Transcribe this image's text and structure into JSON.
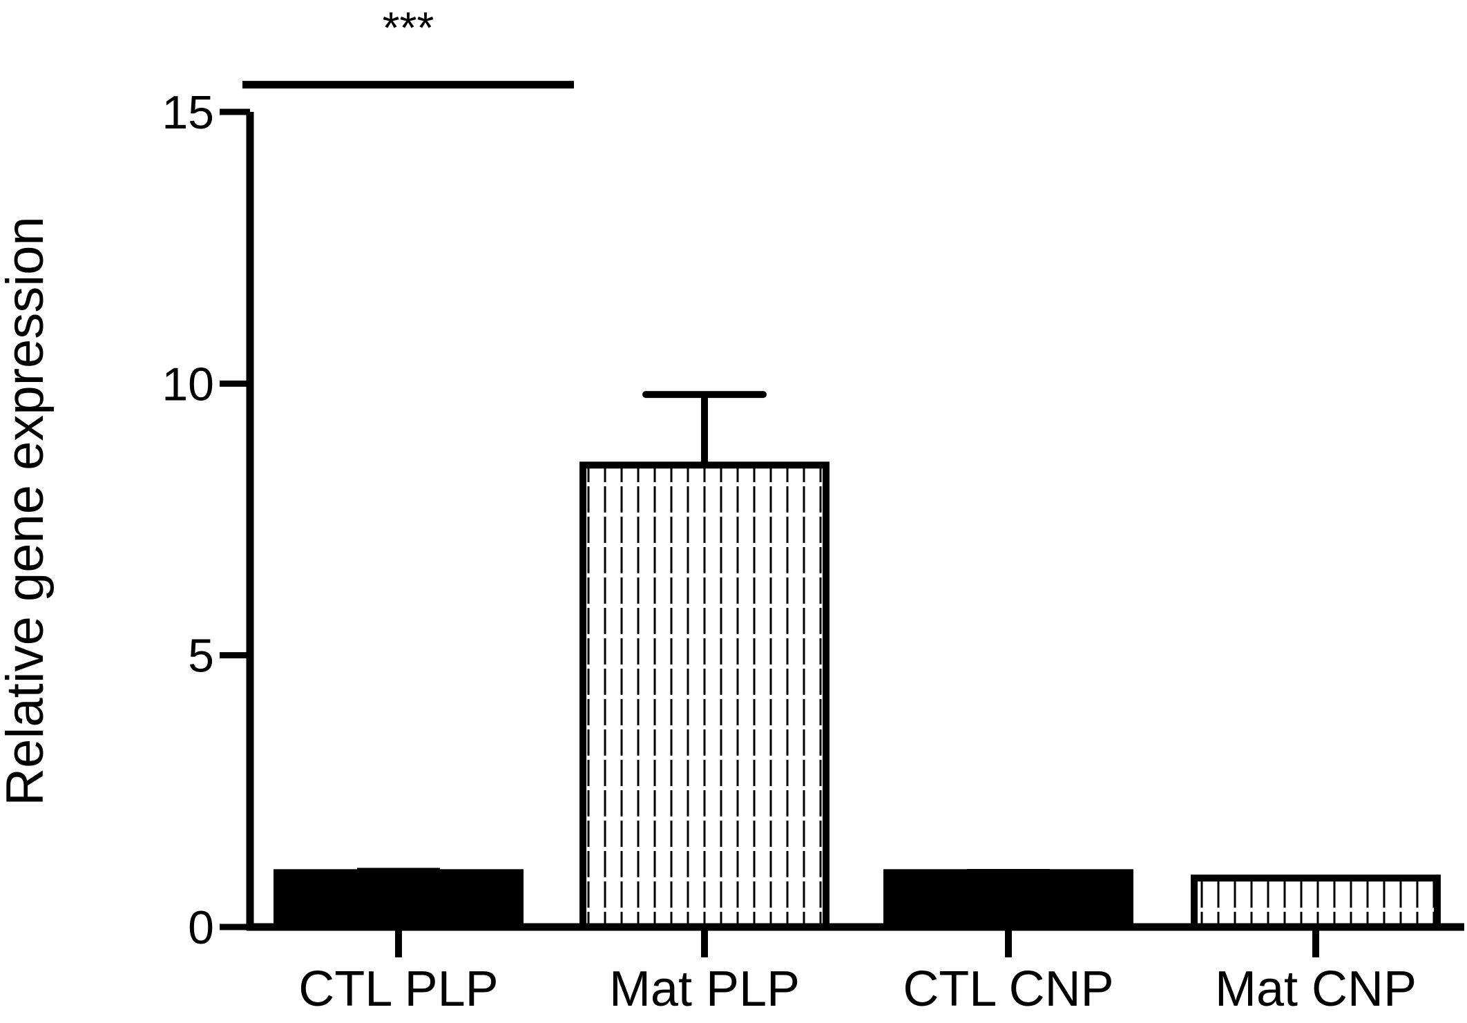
{
  "chart_data": {
    "type": "bar",
    "title": "",
    "xlabel": "",
    "ylabel": "Relative gene expression",
    "ylim": [
      0,
      15
    ],
    "yticks": [
      0,
      5,
      10,
      15
    ],
    "ytick_labels": [
      "0",
      "5",
      "10",
      "15"
    ],
    "grid": false,
    "legend": "none",
    "categories": [
      "CTL PLP",
      "Mat PLP",
      "CTL CNP",
      "Mat CNP"
    ],
    "values": [
      1.0,
      8.5,
      1.0,
      0.9
    ],
    "errors": [
      0.05,
      1.3,
      0.03,
      0.02
    ],
    "fills": [
      "solid",
      "vertical-lines",
      "solid",
      "vertical-lines"
    ],
    "colors": {
      "bar": "#000000",
      "hatch_background": "#ffffff"
    },
    "annotations": [
      {
        "text": "***",
        "from_category": "CTL PLP",
        "to_category": "Mat PLP",
        "y": 15.5
      }
    ]
  }
}
